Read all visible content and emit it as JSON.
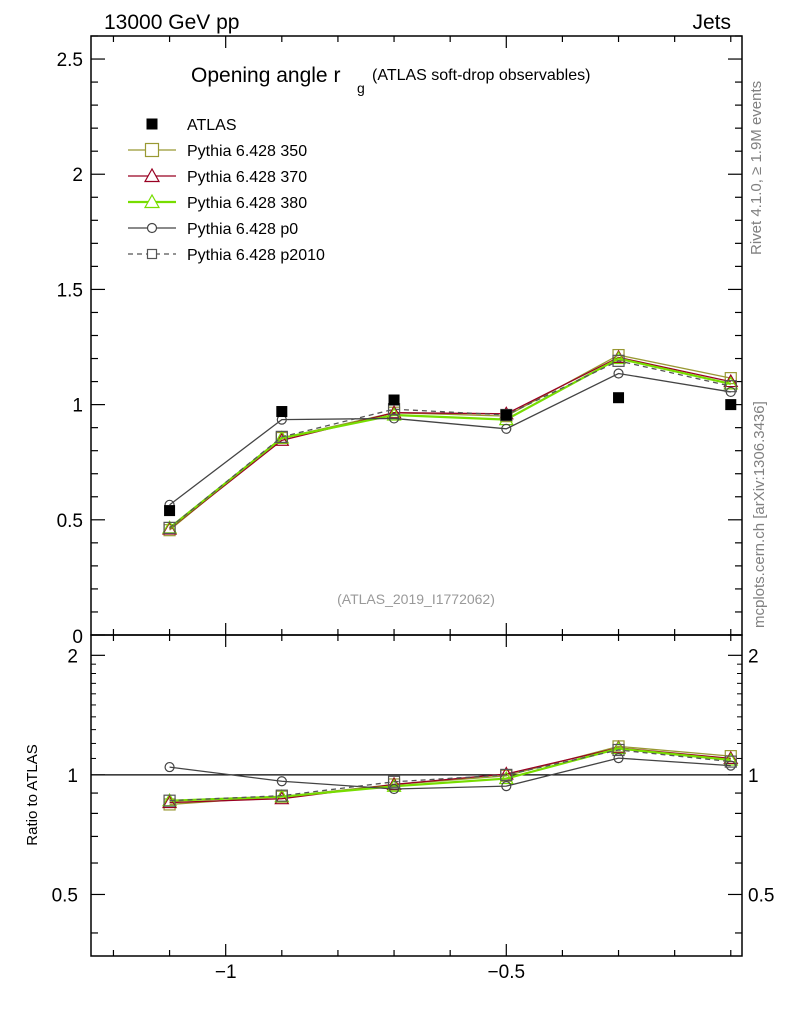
{
  "header": {
    "left_label": "13000 GeV pp",
    "right_label": "Jets"
  },
  "side_labels": {
    "rivet": "Rivet 4.1.0, ≥ 1.9M events",
    "mcplots": "mcplots.cern.ch [arXiv:1306.3436]"
  },
  "chart_data": {
    "type": "line",
    "title_main": "Opening angle r",
    "title_sub": "g",
    "title_note": "(ATLAS soft-drop observables)",
    "analysis_id": "(ATLAS_2019_I1772062)",
    "x": [
      -1.1,
      -0.9,
      -0.7,
      -0.5,
      -0.3,
      -0.1
    ],
    "xlim": [
      -1.24,
      -0.08
    ],
    "x_ticks": [
      -1.0,
      -0.5
    ],
    "x_tick_labels": [
      "−1",
      "−0.5"
    ],
    "ylim": [
      0,
      2.6
    ],
    "y_ticks": [
      0.5,
      1,
      1.5,
      2,
      2.5
    ],
    "y_tick_labels": [
      "0.5",
      "1",
      "1.5",
      "2",
      "2.5"
    ],
    "y_zero_label": "0",
    "ratio": {
      "ylabel": "Ratio to ATLAS",
      "ylim": [
        0.35,
        2.25
      ],
      "y_ticks": [
        0.5,
        1,
        2
      ],
      "y_tick_labels": [
        "0.5",
        "1",
        "2"
      ],
      "reference": 1
    },
    "data": {
      "name": "ATLAS",
      "values": [
        0.54,
        0.97,
        1.02,
        0.955,
        1.03,
        1.0
      ]
    },
    "series": [
      {
        "name": "Pythia 6.428 350",
        "color": "#999933",
        "marker": "square",
        "dash": false,
        "values": [
          0.455,
          0.855,
          0.965,
          0.95,
          1.215,
          1.115
        ]
      },
      {
        "name": "Pythia 6.428 370",
        "color": "#990022",
        "marker": "triangle",
        "dash": false,
        "values": [
          0.46,
          0.845,
          0.965,
          0.96,
          1.205,
          1.1
        ]
      },
      {
        "name": "Pythia 6.428 380",
        "color": "#77dd00",
        "marker": "triangle",
        "dash": false,
        "values": [
          0.465,
          0.855,
          0.955,
          0.935,
          1.2,
          1.09
        ]
      },
      {
        "name": "Pythia 6.428 p0",
        "color": "#444444",
        "marker": "circle",
        "dash": false,
        "values": [
          0.565,
          0.935,
          0.94,
          0.895,
          1.135,
          1.055
        ]
      },
      {
        "name": "Pythia 6.428 p2010",
        "color": "#555555",
        "marker": "square",
        "dash": true,
        "values": [
          0.465,
          0.86,
          0.98,
          0.955,
          1.19,
          1.08
        ]
      }
    ]
  }
}
